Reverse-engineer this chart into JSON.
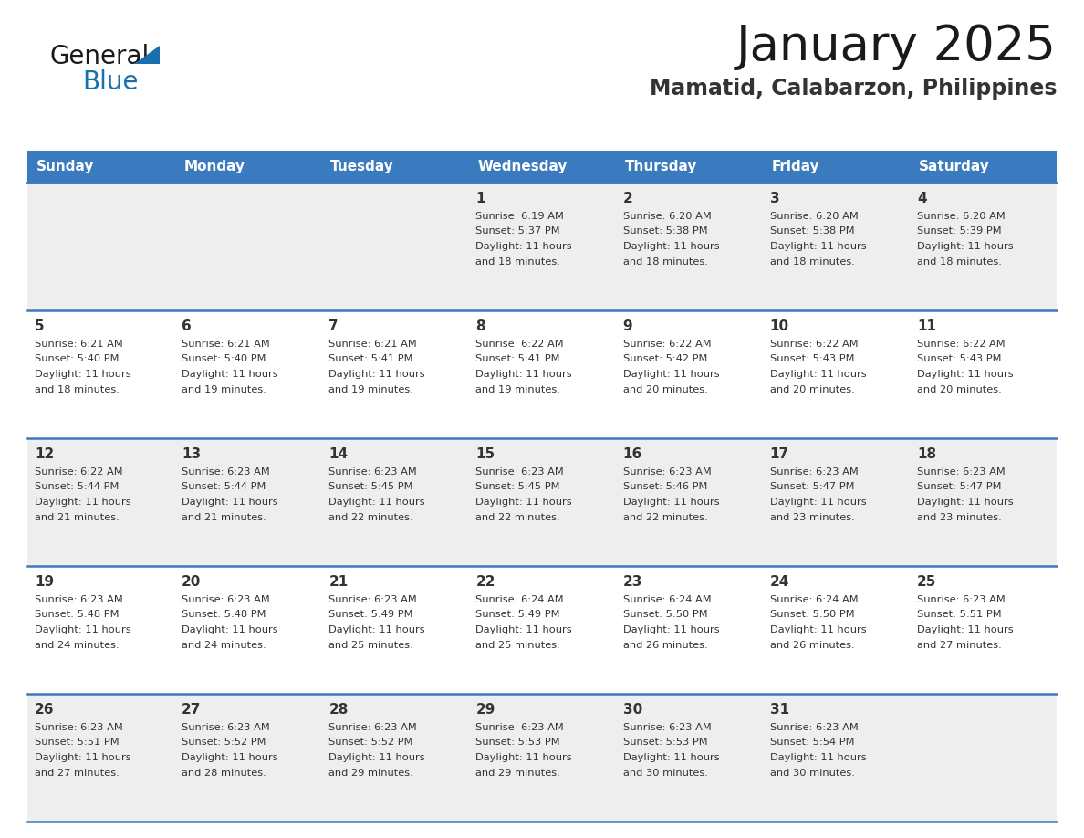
{
  "title": "January 2025",
  "subtitle": "Mamatid, Calabarzon, Philippines",
  "header_bg": "#3a7abf",
  "header_text_color": "#ffffff",
  "day_names": [
    "Sunday",
    "Monday",
    "Tuesday",
    "Wednesday",
    "Thursday",
    "Friday",
    "Saturday"
  ],
  "row_bg_odd": "#eeeeee",
  "row_bg_even": "#ffffff",
  "cell_border_color": "#3a7abf",
  "day_number_color": "#333333",
  "text_color": "#333333",
  "logo_general_color": "#1a1a1a",
  "logo_blue_color": "#1a6faf",
  "logo_triangle_color": "#1a6faf",
  "calendar": [
    [
      null,
      null,
      null,
      {
        "day": 1,
        "sunrise": "6:19 AM",
        "sunset": "5:37 PM",
        "daylight": "11 hours and 18 minutes."
      },
      {
        "day": 2,
        "sunrise": "6:20 AM",
        "sunset": "5:38 PM",
        "daylight": "11 hours and 18 minutes."
      },
      {
        "day": 3,
        "sunrise": "6:20 AM",
        "sunset": "5:38 PM",
        "daylight": "11 hours and 18 minutes."
      },
      {
        "day": 4,
        "sunrise": "6:20 AM",
        "sunset": "5:39 PM",
        "daylight": "11 hours and 18 minutes."
      }
    ],
    [
      {
        "day": 5,
        "sunrise": "6:21 AM",
        "sunset": "5:40 PM",
        "daylight": "11 hours and 18 minutes."
      },
      {
        "day": 6,
        "sunrise": "6:21 AM",
        "sunset": "5:40 PM",
        "daylight": "11 hours and 19 minutes."
      },
      {
        "day": 7,
        "sunrise": "6:21 AM",
        "sunset": "5:41 PM",
        "daylight": "11 hours and 19 minutes."
      },
      {
        "day": 8,
        "sunrise": "6:22 AM",
        "sunset": "5:41 PM",
        "daylight": "11 hours and 19 minutes."
      },
      {
        "day": 9,
        "sunrise": "6:22 AM",
        "sunset": "5:42 PM",
        "daylight": "11 hours and 20 minutes."
      },
      {
        "day": 10,
        "sunrise": "6:22 AM",
        "sunset": "5:43 PM",
        "daylight": "11 hours and 20 minutes."
      },
      {
        "day": 11,
        "sunrise": "6:22 AM",
        "sunset": "5:43 PM",
        "daylight": "11 hours and 20 minutes."
      }
    ],
    [
      {
        "day": 12,
        "sunrise": "6:22 AM",
        "sunset": "5:44 PM",
        "daylight": "11 hours and 21 minutes."
      },
      {
        "day": 13,
        "sunrise": "6:23 AM",
        "sunset": "5:44 PM",
        "daylight": "11 hours and 21 minutes."
      },
      {
        "day": 14,
        "sunrise": "6:23 AM",
        "sunset": "5:45 PM",
        "daylight": "11 hours and 22 minutes."
      },
      {
        "day": 15,
        "sunrise": "6:23 AM",
        "sunset": "5:45 PM",
        "daylight": "11 hours and 22 minutes."
      },
      {
        "day": 16,
        "sunrise": "6:23 AM",
        "sunset": "5:46 PM",
        "daylight": "11 hours and 22 minutes."
      },
      {
        "day": 17,
        "sunrise": "6:23 AM",
        "sunset": "5:47 PM",
        "daylight": "11 hours and 23 minutes."
      },
      {
        "day": 18,
        "sunrise": "6:23 AM",
        "sunset": "5:47 PM",
        "daylight": "11 hours and 23 minutes."
      }
    ],
    [
      {
        "day": 19,
        "sunrise": "6:23 AM",
        "sunset": "5:48 PM",
        "daylight": "11 hours and 24 minutes."
      },
      {
        "day": 20,
        "sunrise": "6:23 AM",
        "sunset": "5:48 PM",
        "daylight": "11 hours and 24 minutes."
      },
      {
        "day": 21,
        "sunrise": "6:23 AM",
        "sunset": "5:49 PM",
        "daylight": "11 hours and 25 minutes."
      },
      {
        "day": 22,
        "sunrise": "6:24 AM",
        "sunset": "5:49 PM",
        "daylight": "11 hours and 25 minutes."
      },
      {
        "day": 23,
        "sunrise": "6:24 AM",
        "sunset": "5:50 PM",
        "daylight": "11 hours and 26 minutes."
      },
      {
        "day": 24,
        "sunrise": "6:24 AM",
        "sunset": "5:50 PM",
        "daylight": "11 hours and 26 minutes."
      },
      {
        "day": 25,
        "sunrise": "6:23 AM",
        "sunset": "5:51 PM",
        "daylight": "11 hours and 27 minutes."
      }
    ],
    [
      {
        "day": 26,
        "sunrise": "6:23 AM",
        "sunset": "5:51 PM",
        "daylight": "11 hours and 27 minutes."
      },
      {
        "day": 27,
        "sunrise": "6:23 AM",
        "sunset": "5:52 PM",
        "daylight": "11 hours and 28 minutes."
      },
      {
        "day": 28,
        "sunrise": "6:23 AM",
        "sunset": "5:52 PM",
        "daylight": "11 hours and 29 minutes."
      },
      {
        "day": 29,
        "sunrise": "6:23 AM",
        "sunset": "5:53 PM",
        "daylight": "11 hours and 29 minutes."
      },
      {
        "day": 30,
        "sunrise": "6:23 AM",
        "sunset": "5:53 PM",
        "daylight": "11 hours and 30 minutes."
      },
      {
        "day": 31,
        "sunrise": "6:23 AM",
        "sunset": "5:54 PM",
        "daylight": "11 hours and 30 minutes."
      },
      null
    ]
  ]
}
